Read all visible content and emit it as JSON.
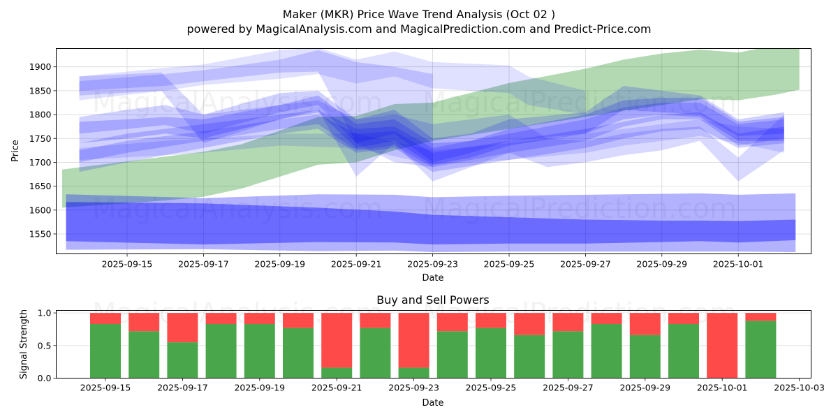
{
  "header": {
    "title": "Maker (MKR) Price Wave Trend Analysis (Oct 02 )",
    "subtitle": "powered by MagicalAnalysis.com and MagicalPrediction.com and Predict-Price.com"
  },
  "watermarks": [
    "MagicalAnalysis.com",
    "MagicalPrediction.com"
  ],
  "colors": {
    "blue": "#0000ff",
    "green": "#008000",
    "buy": "#4aa64a",
    "sell": "#ff4a4a",
    "grid": "#b0b0b0"
  },
  "chart_data": [
    {
      "type": "area",
      "title": "",
      "xlabel": "Date",
      "ylabel": "Price",
      "ylim": [
        1510,
        1940
      ],
      "grid": true,
      "x_origin_date": "2025-09-15",
      "x_unit": "days since 2025-09-15",
      "xlim": [
        -1.85,
        18.0
      ],
      "xticks": [
        {
          "day": 0,
          "label": "2025-09-15"
        },
        {
          "day": 2,
          "label": "2025-09-17"
        },
        {
          "day": 4,
          "label": "2025-09-19"
        },
        {
          "day": 6,
          "label": "2025-09-21"
        },
        {
          "day": 8,
          "label": "2025-09-23"
        },
        {
          "day": 10,
          "label": "2025-09-25"
        },
        {
          "day": 12,
          "label": "2025-09-27"
        },
        {
          "day": 14,
          "label": "2025-09-29"
        },
        {
          "day": 16,
          "label": "2025-10-01"
        }
      ],
      "yticks": [
        1550,
        1600,
        1650,
        1700,
        1750,
        1800,
        1850,
        1900
      ],
      "bands": [
        {
          "name": "green-trend-band",
          "color": "green",
          "opacity": 0.3,
          "x": [
            -1.7,
            1,
            2,
            3,
            5,
            6,
            7,
            8,
            10,
            12,
            13,
            14,
            15,
            16,
            17,
            17.6
          ],
          "upper": [
            1685,
            1712,
            1722,
            1738,
            1795,
            1797,
            1822,
            1825,
            1866,
            1896,
            1915,
            1928,
            1936,
            1930,
            1945,
            1945
          ],
          "lower": [
            1605,
            1620,
            1628,
            1645,
            1695,
            1700,
            1725,
            1745,
            1770,
            1795,
            1808,
            1820,
            1832,
            1830,
            1842,
            1852
          ]
        },
        {
          "name": "low-wide-band",
          "color": "blue",
          "opacity": 0.3,
          "x": [
            -1.6,
            2,
            5,
            7,
            8,
            10,
            12,
            14,
            15,
            16,
            17.5
          ],
          "upper": [
            1633,
            1625,
            1633,
            1632,
            1627,
            1630,
            1632,
            1634,
            1635,
            1632,
            1635
          ],
          "lower": [
            1517,
            1518,
            1514,
            1515,
            1512,
            1513,
            1513,
            1513,
            1513,
            1513,
            1512
          ]
        },
        {
          "name": "low-core-band",
          "color": "blue",
          "opacity": 0.4,
          "x": [
            -1.6,
            2,
            5,
            7,
            8,
            10,
            12,
            14,
            15,
            16,
            17.5
          ],
          "upper": [
            1617,
            1614,
            1605,
            1597,
            1590,
            1585,
            1580,
            1578,
            1578,
            1577,
            1580
          ],
          "lower": [
            1535,
            1528,
            1533,
            1532,
            1528,
            1530,
            1530,
            1533,
            1535,
            1532,
            1537
          ]
        },
        {
          "name": "top-band-1",
          "color": "blue",
          "opacity": 0.12,
          "x": [
            -1.25,
            1,
            2,
            4,
            5,
            6,
            7,
            8,
            10,
            10.5,
            12
          ],
          "upper": [
            1880,
            1898,
            1905,
            1935,
            1940,
            1915,
            1932,
            1910,
            1903,
            1880,
            1850
          ],
          "lower": [
            1830,
            1850,
            1862,
            1875,
            1885,
            1865,
            1880,
            1855,
            1845,
            1820,
            1800
          ]
        },
        {
          "name": "top-band-2",
          "color": "blue",
          "opacity": 0.15,
          "x": [
            -1.25,
            1,
            2,
            4,
            5,
            6,
            7,
            8
          ],
          "upper": [
            1870,
            1885,
            1893,
            1915,
            1935,
            1910,
            1900,
            1885
          ],
          "lower": [
            1850,
            1860,
            1870,
            1888,
            1890,
            1740,
            1700,
            1690
          ]
        },
        {
          "name": "upper-left-band-a",
          "color": "blue",
          "opacity": 0.15,
          "x": [
            -1.25,
            0.9,
            2,
            4,
            5,
            6,
            7,
            8,
            10,
            11,
            12,
            13,
            14,
            15,
            16,
            17.2
          ],
          "upper": [
            1880,
            1888,
            1800,
            1820,
            1830,
            1790,
            1800,
            1780,
            1800,
            1750,
            1745,
            1760,
            1770,
            1775,
            1710,
            1800
          ],
          "lower": [
            1840,
            1850,
            1740,
            1790,
            1810,
            1670,
            1740,
            1660,
            1720,
            1690,
            1700,
            1715,
            1725,
            1745,
            1660,
            1725
          ]
        },
        {
          "name": "mid-band-a",
          "color": "blue",
          "opacity": 0.18,
          "x": [
            -1.25,
            0,
            1,
            2,
            4,
            5,
            6,
            7,
            8,
            9,
            10,
            12,
            13,
            14,
            15,
            16,
            17.2
          ],
          "upper": [
            1795,
            1810,
            1820,
            1800,
            1845,
            1850,
            1790,
            1810,
            1750,
            1760,
            1790,
            1805,
            1860,
            1850,
            1840,
            1790,
            1805
          ],
          "lower": [
            1760,
            1770,
            1778,
            1760,
            1805,
            1820,
            1740,
            1760,
            1700,
            1720,
            1745,
            1760,
            1810,
            1805,
            1800,
            1755,
            1760
          ]
        },
        {
          "name": "mid-band-b",
          "color": "blue",
          "opacity": 0.2,
          "x": [
            -1.25,
            0,
            1,
            2,
            4,
            5,
            6,
            7,
            8,
            9,
            10,
            12,
            13,
            14,
            15,
            16,
            17.2
          ],
          "upper": [
            1785,
            1790,
            1795,
            1790,
            1820,
            1840,
            1780,
            1790,
            1740,
            1745,
            1770,
            1800,
            1830,
            1835,
            1835,
            1785,
            1795
          ],
          "lower": [
            1740,
            1750,
            1760,
            1750,
            1790,
            1805,
            1730,
            1745,
            1695,
            1710,
            1735,
            1760,
            1790,
            1800,
            1795,
            1745,
            1745
          ]
        },
        {
          "name": "mid-band-c",
          "color": "blue",
          "opacity": 0.18,
          "x": [
            -1.25,
            0,
            2,
            4,
            5,
            6,
            7,
            8,
            10,
            12,
            13,
            14,
            15,
            16,
            17.2
          ],
          "upper": [
            1740,
            1760,
            1780,
            1800,
            1810,
            1770,
            1775,
            1730,
            1760,
            1790,
            1815,
            1825,
            1825,
            1780,
            1790
          ],
          "lower": [
            1700,
            1720,
            1745,
            1770,
            1780,
            1725,
            1735,
            1690,
            1720,
            1745,
            1775,
            1790,
            1790,
            1735,
            1750
          ]
        },
        {
          "name": "mid-band-d",
          "color": "blue",
          "opacity": 0.18,
          "x": [
            -1.25,
            0,
            2,
            4,
            5,
            6,
            7,
            8,
            10,
            12,
            13,
            14,
            15,
            16,
            17.2
          ],
          "upper": [
            1725,
            1745,
            1765,
            1790,
            1800,
            1760,
            1765,
            1720,
            1745,
            1770,
            1785,
            1800,
            1805,
            1760,
            1775
          ],
          "lower": [
            1680,
            1700,
            1730,
            1760,
            1770,
            1720,
            1730,
            1680,
            1705,
            1730,
            1750,
            1765,
            1770,
            1730,
            1740
          ]
        },
        {
          "name": "low-mid-band",
          "color": "blue",
          "opacity": 0.12,
          "x": [
            -1.25,
            1,
            2,
            4,
            6,
            8,
            10,
            12,
            13,
            14,
            15,
            16,
            17.2
          ],
          "upper": [
            1730,
            1745,
            1750,
            1760,
            1760,
            1725,
            1740,
            1760,
            1770,
            1780,
            1790,
            1775,
            1770
          ],
          "lower": [
            1705,
            1715,
            1720,
            1735,
            1730,
            1695,
            1705,
            1720,
            1735,
            1745,
            1755,
            1740,
            1720
          ]
        }
      ],
      "watermarks_visible": true
    },
    {
      "type": "bar",
      "title": "Buy and Sell Powers",
      "xlabel": "Date",
      "ylabel": "Signal Strength",
      "ylim": [
        0,
        1.05
      ],
      "grid": true,
      "xticks": [
        "2025-09-15",
        "2025-09-17",
        "2025-09-19",
        "2025-09-21",
        "2025-09-23",
        "2025-09-25",
        "2025-09-27",
        "2025-09-29",
        "2025-10-01",
        "2025-10-03"
      ],
      "yticks": [
        "0.0",
        "0.5",
        "1.0"
      ],
      "categories": [
        "2025-09-15",
        "2025-09-16",
        "2025-09-17",
        "2025-09-18",
        "2025-09-19",
        "2025-09-20",
        "2025-09-21",
        "2025-09-22",
        "2025-09-23",
        "2025-09-24",
        "2025-09-25",
        "2025-09-26",
        "2025-09-27",
        "2025-09-28",
        "2025-09-29",
        "2025-09-30",
        "2025-10-01",
        "2025-10-02"
      ],
      "series": [
        {
          "name": "Buy",
          "color": "buy",
          "values": [
            0.83,
            0.72,
            0.55,
            0.83,
            0.83,
            0.77,
            0.16,
            0.77,
            0.16,
            0.72,
            0.77,
            0.66,
            0.72,
            0.83,
            0.66,
            0.83,
            0.0,
            0.88
          ]
        },
        {
          "name": "Sell",
          "color": "sell",
          "values": [
            0.17,
            0.28,
            0.45,
            0.17,
            0.17,
            0.23,
            0.84,
            0.23,
            0.84,
            0.28,
            0.23,
            0.34,
            0.28,
            0.17,
            0.34,
            0.17,
            1.0,
            0.12
          ]
        }
      ]
    }
  ]
}
